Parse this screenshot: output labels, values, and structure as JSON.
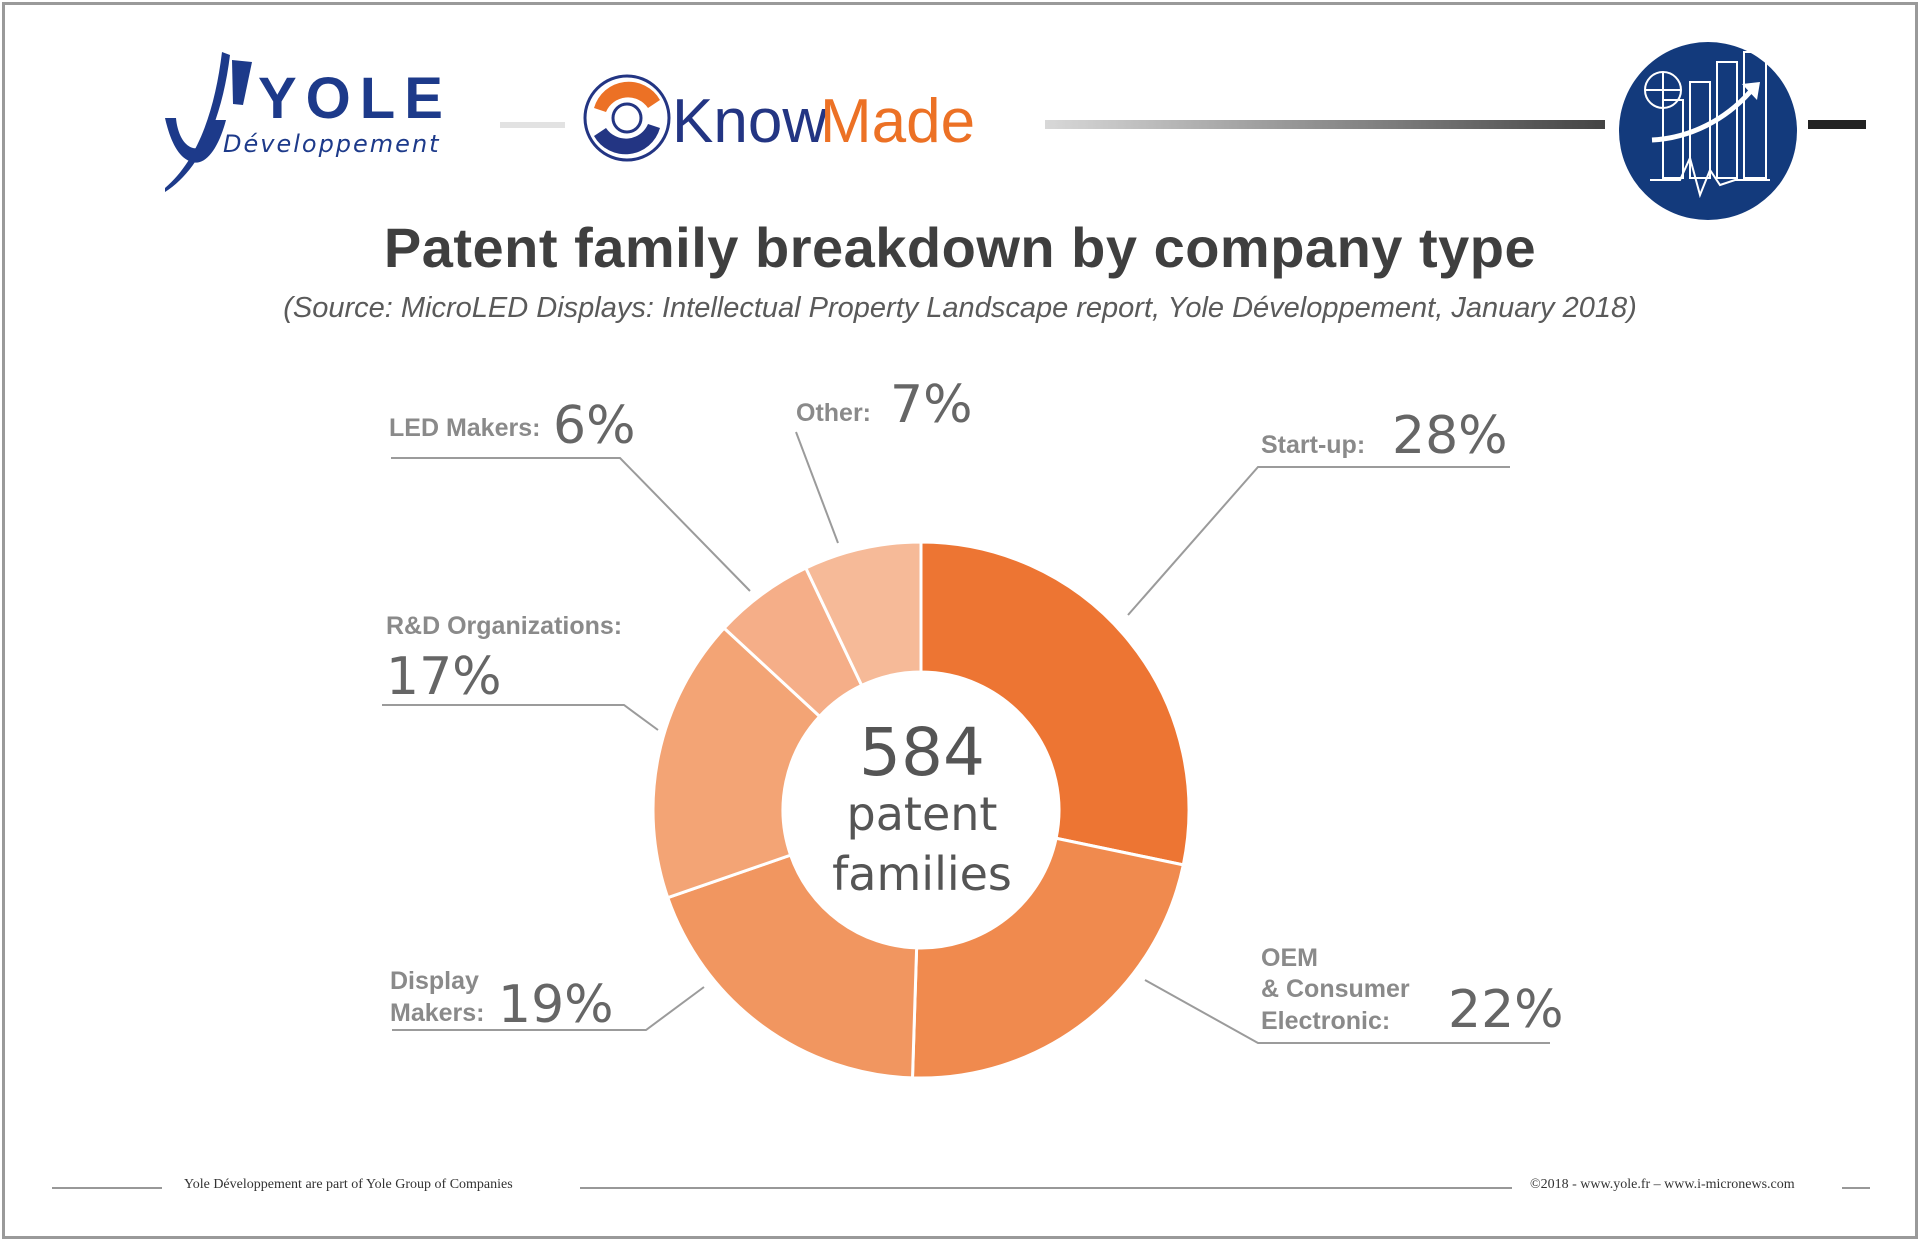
{
  "header": {
    "yole_logo": {
      "name": "YOLE",
      "sub": "Développement",
      "color": "#1d3a8a"
    },
    "knowmade_logo": {
      "part1": "Know",
      "part2": "Made",
      "color1": "#233583",
      "color2": "#ec7125"
    },
    "badge_icon": "chart-growth-icon",
    "badge_color": "#133a7c"
  },
  "title": "Patent family breakdown by company type",
  "subtitle": "(Source: MicroLED Displays: Intellectual Property Landscape report, Yole Développement, January 2018)",
  "chart_data": {
    "type": "pie",
    "donut": true,
    "total_label": {
      "number": "584",
      "line1": "patent",
      "line2": "families"
    },
    "slices": [
      {
        "label": "Start-up:",
        "value": 28,
        "display": "28%",
        "color": "#ed7533"
      },
      {
        "label": "OEM & Consumer Electronic:",
        "value": 22,
        "display": "22%",
        "color": "#f08a4e"
      },
      {
        "label": "Display Makers:",
        "value": 19,
        "display": "19%",
        "color": "#f19660"
      },
      {
        "label": "R&D Organizations:",
        "value": 17,
        "display": "17%",
        "color": "#f3a475"
      },
      {
        "label": "LED Makers:",
        "value": 6,
        "display": "6%",
        "color": "#f5ae88"
      },
      {
        "label": "Other:",
        "value": 7,
        "display": "7%",
        "color": "#f6ba98"
      }
    ]
  },
  "callouts": {
    "startup": {
      "label": "Start-up:",
      "pct": "28%"
    },
    "oem": {
      "line1": "OEM",
      "line2": "& Consumer",
      "line3": "Electronic:",
      "pct": "22%"
    },
    "display": {
      "line1": "Display",
      "line2": "Makers:",
      "pct": "19%"
    },
    "rnd": {
      "label": "R&D Organizations:",
      "pct": "17%"
    },
    "led": {
      "label": "LED Makers:",
      "pct": "6%"
    },
    "other": {
      "label": "Other:",
      "pct": "7%"
    }
  },
  "footer": {
    "left": "Yole Développement are part of Yole Group of Companies",
    "right": "©2018 - www.yole.fr – www.i-micronews.com"
  }
}
